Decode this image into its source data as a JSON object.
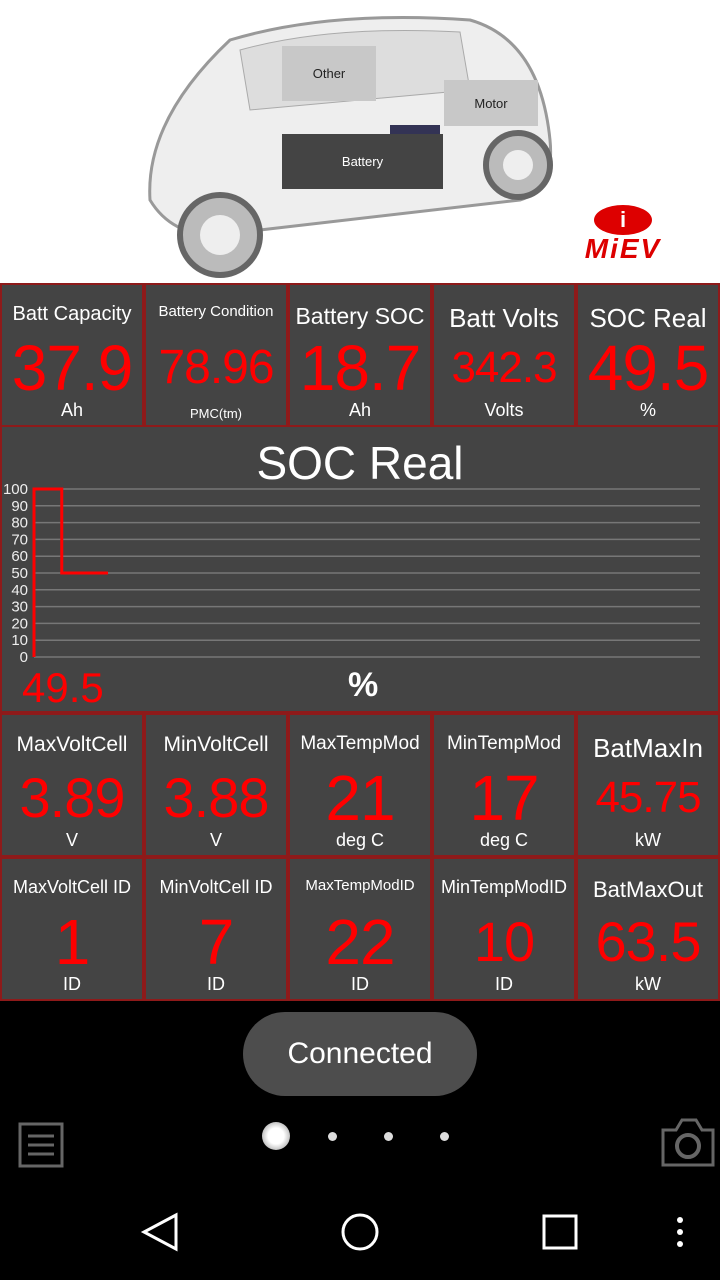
{
  "hero": {
    "zones": {
      "other": "Other",
      "motor": "Motor",
      "battery": "Battery"
    },
    "logo": "MiEV"
  },
  "tiles": [
    {
      "label": "Batt Capacity",
      "value": "37.9",
      "unit": "Ah"
    },
    {
      "label": "Battery Condition",
      "value": "78.96",
      "unit": "PMC(tm)"
    },
    {
      "label": "Battery SOC",
      "value": "18.7",
      "unit": "Ah"
    },
    {
      "label": "Batt Volts",
      "value": "342.3",
      "unit": "Volts"
    },
    {
      "label": "SOC Real",
      "value": "49.5",
      "unit": "%"
    },
    {
      "label": "MaxVoltCell",
      "value": "3.89",
      "unit": "V"
    },
    {
      "label": "MinVoltCell",
      "value": "3.88",
      "unit": "V"
    },
    {
      "label": "MaxTempMod",
      "value": "21",
      "unit": "deg C"
    },
    {
      "label": "MinTempMod",
      "value": "17",
      "unit": "deg C"
    },
    {
      "label": "BatMaxIn",
      "value": "45.75",
      "unit": "kW"
    },
    {
      "label": "MaxVoltCell ID",
      "value": "1",
      "unit": "ID"
    },
    {
      "label": "MinVoltCell ID",
      "value": "7",
      "unit": "ID"
    },
    {
      "label": "MaxTempModID",
      "value": "22",
      "unit": "ID"
    },
    {
      "label": "MinTempModID",
      "value": "10",
      "unit": "ID"
    },
    {
      "label": "BatMaxOut",
      "value": "63.5",
      "unit": "kW"
    }
  ],
  "chart_data": {
    "type": "line",
    "title": "SOC Real",
    "current_value": "49.5",
    "unit": "%",
    "ylim": [
      0,
      100
    ],
    "yticks": [
      0,
      10,
      20,
      30,
      40,
      50,
      60,
      70,
      80,
      90,
      100
    ],
    "grid": true,
    "line_color": "#ff0000",
    "x": [
      0,
      0,
      3,
      3,
      8
    ],
    "xlim": [
      0,
      72
    ],
    "values": [
      0,
      100,
      100,
      50,
      50
    ]
  },
  "toast": "Connected",
  "colors": {
    "value": "#ff0000",
    "tile_bg": "#444444",
    "border": "#8e1a1a"
  }
}
